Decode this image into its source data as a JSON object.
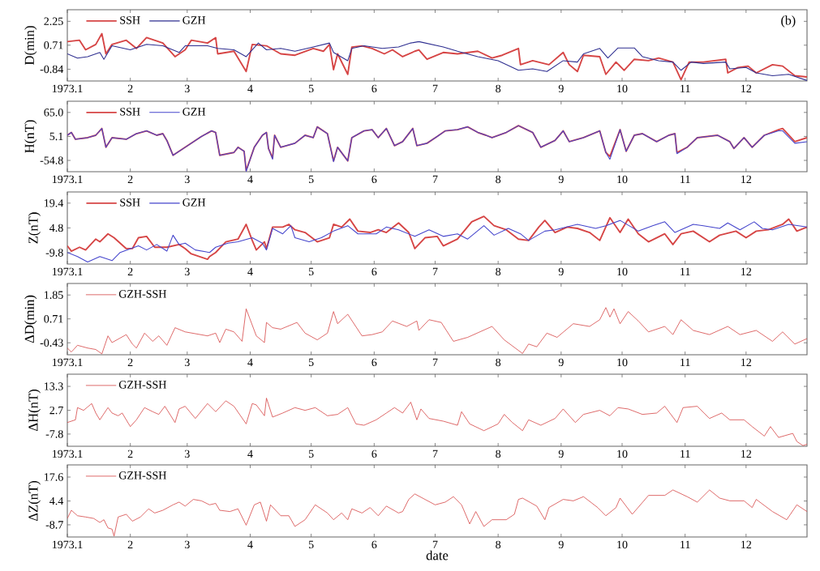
{
  "chart_data": [
    {
      "type": "line",
      "ylabel": "D(min)",
      "xlim": [
        "1973-01-01",
        "1973-12-31"
      ],
      "xticks": [
        {
          "value": "1973-01-01",
          "label": "1973.1"
        },
        {
          "value": "1973-02-01",
          "label": "2"
        },
        {
          "value": "1973-03-01",
          "label": "3"
        },
        {
          "value": "1973-04-01",
          "label": "4"
        },
        {
          "value": "1973-05-01",
          "label": "5"
        },
        {
          "value": "1973-06-01",
          "label": "6"
        },
        {
          "value": "1973-07-01",
          "label": "7"
        },
        {
          "value": "1973-08-01",
          "label": "8"
        },
        {
          "value": "1973-09-01",
          "label": "9"
        },
        {
          "value": "1973-10-01",
          "label": "10"
        },
        {
          "value": "1973-11-01",
          "label": "11"
        },
        {
          "value": "1973-12-01",
          "label": "12"
        }
      ],
      "ylim": [
        -1.6,
        3.0
      ],
      "yticks": [
        2.25,
        0.71,
        -0.84
      ],
      "legend": "top left",
      "annotations": [
        "(b)"
      ],
      "series": [
        {
          "name": "SSH",
          "color": "#d64545",
          "x": [
            "1973-01-01",
            "1973-01-07",
            "1973-01-10",
            "1973-01-15",
            "1973-01-18",
            "1973-01-20",
            "1973-01-23",
            "1973-01-30",
            "1973-02-04",
            "1973-02-09",
            "1973-02-17",
            "1973-02-23",
            "1973-02-28",
            "1973-03-03",
            "1973-03-11",
            "1973-03-15",
            "1973-03-16",
            "1973-03-24",
            "1973-03-30",
            "1973-04-02",
            "1973-04-09",
            "1973-04-16",
            "1973-04-23",
            "1973-05-02",
            "1973-05-07",
            "1973-05-10",
            "1973-05-12",
            "1973-05-14",
            "1973-05-19",
            "1973-05-21",
            "1973-05-26",
            "1973-05-31",
            "1973-06-06",
            "1973-06-10",
            "1973-06-15",
            "1973-06-21",
            "1973-06-23",
            "1973-06-27",
            "1973-07-05",
            "1973-07-12",
            "1973-07-22",
            "1973-07-29",
            "1973-08-03",
            "1973-08-11",
            "1973-08-12",
            "1973-08-18",
            "1973-08-26",
            "1973-09-02",
            "1973-09-05",
            "1973-09-09",
            "1973-09-12",
            "1973-09-20",
            "1973-09-23",
            "1973-09-28",
            "1973-10-02",
            "1973-10-07",
            "1973-10-14",
            "1973-10-19",
            "1973-10-26",
            "1973-10-30",
            "1973-11-03",
            "1973-11-10",
            "1973-11-21",
            "1973-11-22",
            "1973-11-27",
            "1973-12-02",
            "1973-12-06",
            "1973-12-14",
            "1973-12-19",
            "1973-12-25",
            "1973-12-31"
          ],
          "values": [
            0.94,
            1.03,
            0.41,
            0.76,
            1.46,
            0.15,
            0.76,
            1.03,
            0.5,
            1.2,
            0.85,
            -0.03,
            0.41,
            1.03,
            0.85,
            1.2,
            0.15,
            0.32,
            -0.99,
            0.76,
            0.67,
            0.15,
            0.06,
            0.5,
            0.32,
            0.76,
            -0.87,
            0.15,
            -1.17,
            0.59,
            0.67,
            0.5,
            0.15,
            0.41,
            -0.03,
            0.32,
            0.41,
            -0.2,
            0.24,
            0.15,
            0.32,
            -0.12,
            0.06,
            0.5,
            -0.55,
            -0.29,
            -0.55,
            0.24,
            -0.55,
            -0.99,
            0.06,
            -0.03,
            -1.17,
            -0.38,
            -0.91,
            -0.2,
            -0.29,
            -0.12,
            -0.38,
            -1.52,
            -0.38,
            -0.38,
            -0.2,
            -1.08,
            -0.73,
            -0.64,
            -1.08,
            -0.55,
            -0.64,
            -1.26,
            -1.34
          ]
        },
        {
          "name": "GZH",
          "color": "#2e2e90",
          "x": [
            "1973-01-01",
            "1973-01-06",
            "1973-01-11",
            "1973-01-17",
            "1973-01-19",
            "1973-01-23",
            "1973-02-01",
            "1973-02-09",
            "1973-02-17",
            "1973-02-25",
            "1973-02-28",
            "1973-03-11",
            "1973-03-16",
            "1973-03-24",
            "1973-03-30",
            "1973-04-05",
            "1973-04-09",
            "1973-04-16",
            "1973-04-23",
            "1973-05-02",
            "1973-05-10",
            "1973-05-12",
            "1973-05-19",
            "1973-05-21",
            "1973-05-27",
            "1973-06-05",
            "1973-06-13",
            "1973-06-19",
            "1973-06-23",
            "1973-07-05",
            "1973-07-12",
            "1973-07-22",
            "1973-08-01",
            "1973-08-11",
            "1973-08-18",
            "1973-08-25",
            "1973-09-02",
            "1973-09-09",
            "1973-09-12",
            "1973-09-20",
            "1973-09-24",
            "1973-09-29",
            "1973-10-07",
            "1973-10-11",
            "1973-10-19",
            "1973-10-26",
            "1973-10-30",
            "1973-11-04",
            "1973-11-10",
            "1973-11-21",
            "1973-11-23",
            "1973-12-01",
            "1973-12-06",
            "1973-12-14",
            "1973-12-22",
            "1973-12-31"
          ],
          "values": [
            0.15,
            -0.12,
            -0.03,
            0.24,
            -0.2,
            0.67,
            0.41,
            0.76,
            0.67,
            0.24,
            0.67,
            0.67,
            0.5,
            0.41,
            -0.03,
            0.85,
            0.41,
            0.5,
            0.32,
            0.59,
            0.85,
            0.24,
            -0.29,
            0.5,
            0.67,
            0.5,
            0.59,
            0.85,
            0.94,
            0.59,
            0.32,
            -0.03,
            -0.29,
            -0.91,
            -0.82,
            -0.99,
            -0.29,
            -0.38,
            0.15,
            0.5,
            -0.12,
            0.53,
            0.53,
            -0.03,
            -0.29,
            -0.38,
            -0.91,
            -0.38,
            -0.47,
            -0.38,
            -0.82,
            -0.73,
            -1.08,
            -1.26,
            -1.17,
            -1.57
          ]
        }
      ]
    },
    {
      "type": "line",
      "ylabel": "H(nT)",
      "xlim": [
        "1973-01-01",
        "1973-12-31"
      ],
      "xticks": [
        {
          "value": "1973-01-01",
          "label": "1973.1"
        },
        {
          "value": "1973-02-01",
          "label": "2"
        },
        {
          "value": "1973-03-01",
          "label": "3"
        },
        {
          "value": "1973-04-01",
          "label": "4"
        },
        {
          "value": "1973-05-01",
          "label": "5"
        },
        {
          "value": "1973-06-01",
          "label": "6"
        },
        {
          "value": "1973-07-01",
          "label": "7"
        },
        {
          "value": "1973-08-01",
          "label": "8"
        },
        {
          "value": "1973-09-01",
          "label": "9"
        },
        {
          "value": "1973-10-01",
          "label": "10"
        },
        {
          "value": "1973-11-01",
          "label": "11"
        },
        {
          "value": "1973-12-01",
          "label": "12"
        }
      ],
      "ylim": [
        -83,
        93
      ],
      "yticks": [
        {
          "value": 65,
          "label": "65.0"
        },
        5.1,
        -54.8
      ],
      "legend": "top left",
      "x": [
        "1973-01-01",
        "1973-01-03",
        "1973-01-05",
        "1973-01-11",
        "1973-01-15",
        "1973-01-18",
        "1973-01-20",
        "1973-01-23",
        "1973-01-30",
        "1973-02-04",
        "1973-02-09",
        "1973-02-14",
        "1973-02-17",
        "1973-02-19",
        "1973-02-22",
        "1973-02-28",
        "1973-03-08",
        "1973-03-13",
        "1973-03-15",
        "1973-03-17",
        "1973-03-24",
        "1973-03-26",
        "1973-03-29",
        "1973-03-30",
        "1973-04-03",
        "1973-04-07",
        "1973-04-09",
        "1973-04-10",
        "1973-04-12",
        "1973-04-13",
        "1973-04-16",
        "1973-04-23",
        "1973-04-28",
        "1973-05-02",
        "1973-05-04",
        "1973-05-09",
        "1973-05-12",
        "1973-05-14",
        "1973-05-19",
        "1973-05-21",
        "1973-05-27",
        "1973-05-31",
        "1973-06-03",
        "1973-06-07",
        "1973-06-11",
        "1973-06-15",
        "1973-06-20",
        "1973-06-22",
        "1973-06-27",
        "1973-07-02",
        "1973-07-06",
        "1973-07-12",
        "1973-07-17",
        "1973-07-22",
        "1973-07-26",
        "1973-07-29",
        "1973-08-05",
        "1973-08-11",
        "1973-08-18",
        "1973-08-22",
        "1973-08-29",
        "1973-09-02",
        "1973-09-05",
        "1973-09-12",
        "1973-09-20",
        "1973-09-23",
        "1973-09-25",
        "1973-09-30",
        "1973-10-03",
        "1973-10-07",
        "1973-10-11",
        "1973-10-18",
        "1973-10-24",
        "1973-10-27",
        "1973-10-28",
        "1973-11-02",
        "1973-11-07",
        "1973-11-17",
        "1973-11-23",
        "1973-11-25",
        "1973-11-30",
        "1973-12-04",
        "1973-12-10",
        "1973-12-17",
        "1973-12-19",
        "1973-12-25",
        "1973-12-31"
      ],
      "series": [
        {
          "name": "SSH",
          "color": "#d64545",
          "values": [
            8,
            15,
            -2,
            2,
            8,
            25,
            -22,
            2,
            -2,
            12,
            19,
            8,
            12,
            -5,
            -42,
            -22,
            5,
            19,
            15,
            -42,
            -35,
            -22,
            -32,
            -80,
            -22,
            8,
            15,
            -25,
            -49,
            8,
            -22,
            -12,
            8,
            2,
            29,
            12,
            -56,
            -22,
            -56,
            2,
            19,
            22,
            2,
            25,
            -18,
            -8,
            25,
            -18,
            -12,
            5,
            19,
            22,
            29,
            15,
            8,
            2,
            15,
            32,
            15,
            -22,
            -5,
            19,
            -8,
            2,
            19,
            -35,
            -45,
            22,
            -32,
            8,
            12,
            -8,
            8,
            12,
            -35,
            -22,
            2,
            8,
            -8,
            -25,
            2,
            -22,
            8,
            22,
            25,
            -8,
            2
          ]
        },
        {
          "name": "GZH",
          "color": "#4545cc",
          "values": [
            8,
            15,
            -2,
            2,
            8,
            25,
            -22,
            2,
            -2,
            12,
            19,
            8,
            12,
            -5,
            -42,
            -22,
            5,
            19,
            15,
            -42,
            -35,
            -22,
            -32,
            -82,
            -22,
            8,
            15,
            -25,
            -52,
            8,
            -22,
            -12,
            8,
            2,
            29,
            12,
            -58,
            -22,
            -56,
            2,
            19,
            22,
            2,
            25,
            -18,
            -8,
            25,
            -18,
            -12,
            5,
            19,
            22,
            29,
            15,
            8,
            2,
            15,
            32,
            15,
            -22,
            -5,
            19,
            -8,
            2,
            19,
            -35,
            -52,
            22,
            -32,
            8,
            12,
            -8,
            8,
            12,
            -38,
            -22,
            2,
            8,
            -8,
            -25,
            2,
            -22,
            8,
            19,
            19,
            -12,
            -8
          ]
        }
      ]
    },
    {
      "type": "line",
      "ylabel": "Z(nT)",
      "xlim": [
        "1973-01-01",
        "1973-12-31"
      ],
      "xticks": [
        {
          "value": "1973-01-01",
          "label": "1973.1"
        },
        {
          "value": "1973-02-01",
          "label": "2"
        },
        {
          "value": "1973-03-01",
          "label": "3"
        },
        {
          "value": "1973-04-01",
          "label": "4"
        },
        {
          "value": "1973-05-01",
          "label": "5"
        },
        {
          "value": "1973-06-01",
          "label": "6"
        },
        {
          "value": "1973-07-01",
          "label": "7"
        },
        {
          "value": "1973-08-01",
          "label": "8"
        },
        {
          "value": "1973-09-01",
          "label": "9"
        },
        {
          "value": "1973-10-01",
          "label": "10"
        },
        {
          "value": "1973-11-01",
          "label": "11"
        },
        {
          "value": "1973-12-01",
          "label": "12"
        }
      ],
      "ylim": [
        -16.5,
        26
      ],
      "yticks": [
        19.4,
        4.8,
        -9.8
      ],
      "legend": "top left",
      "series": [
        {
          "name": "SSH",
          "color": "#d64545",
          "x": [
            "1973-01-01",
            "1973-01-03",
            "1973-01-07",
            "1973-01-10",
            "1973-01-15",
            "1973-01-17",
            "1973-01-21",
            "1973-01-24",
            "1973-01-30",
            "1973-02-02",
            "1973-02-05",
            "1973-02-09",
            "1973-02-13",
            "1973-02-19",
            "1973-02-25",
            "1973-02-28",
            "1973-03-03",
            "1973-03-11",
            "1973-03-12",
            "1973-03-15",
            "1973-03-20",
            "1973-03-26",
            "1973-03-30",
            "1973-04-02",
            "1973-04-04",
            "1973-04-08",
            "1973-04-09",
            "1973-04-12",
            "1973-04-17",
            "1973-04-20",
            "1973-04-23",
            "1973-04-28",
            "1973-05-04",
            "1973-05-10",
            "1973-05-12",
            "1973-05-16",
            "1973-05-20",
            "1973-05-24",
            "1973-05-30",
            "1973-06-03",
            "1973-06-07",
            "1973-06-13",
            "1973-06-18",
            "1973-06-21",
            "1973-06-26",
            "1973-07-02",
            "1973-07-05",
            "1973-07-12",
            "1973-07-19",
            "1973-07-25",
            "1973-07-30",
            "1973-08-05",
            "1973-08-11",
            "1973-08-16",
            "1973-08-21",
            "1973-08-24",
            "1973-08-29",
            "1973-09-04",
            "1973-09-09",
            "1973-09-15",
            "1973-09-20",
            "1973-09-25",
            "1973-09-30",
            "1973-10-04",
            "1973-10-09",
            "1973-10-14",
            "1973-10-22",
            "1973-10-26",
            "1973-10-30",
            "1973-11-05",
            "1973-11-13",
            "1973-11-18",
            "1973-11-26",
            "1973-12-01",
            "1973-12-06",
            "1973-12-12",
            "1973-12-19",
            "1973-12-22",
            "1973-12-26",
            "1973-12-31"
          ],
          "values": [
            -5.8,
            -8.9,
            -6.6,
            -8.2,
            -1.8,
            -3.4,
            1.3,
            -1.0,
            -7.4,
            -7.4,
            -1.0,
            -0.2,
            -6.6,
            -6.6,
            -5.0,
            -7.4,
            -10.5,
            -13.7,
            -12.1,
            -9.7,
            -3.4,
            -1.8,
            6.9,
            -2.6,
            -8.2,
            -3.4,
            -7.4,
            5.3,
            5.3,
            6.9,
            3.7,
            2.1,
            -3.4,
            -1.0,
            6.9,
            5.3,
            10.0,
            2.9,
            2.1,
            3.7,
            2.1,
            7.7,
            2.1,
            -7.4,
            -1.0,
            -0.2,
            -5.8,
            -1.8,
            8.4,
            11.6,
            6.1,
            3.7,
            -1.8,
            -2.6,
            5.3,
            9.2,
            2.1,
            5.3,
            4.5,
            2.1,
            -2.6,
            10.8,
            2.1,
            10.0,
            1.3,
            -3.4,
            1.3,
            -5.0,
            1.3,
            2.9,
            -3.4,
            0.5,
            2.9,
            -1.0,
            2.9,
            3.7,
            6.9,
            10.0,
            2.9,
            5.3
          ]
        },
        {
          "name": "GZH",
          "color": "#4545cc",
          "x": [
            "1973-01-01",
            "1973-01-06",
            "1973-01-11",
            "1973-01-17",
            "1973-01-23",
            "1973-01-27",
            "1973-02-05",
            "1973-02-09",
            "1973-02-14",
            "1973-02-19",
            "1973-02-22",
            "1973-02-25",
            "1973-02-28",
            "1973-03-05",
            "1973-03-12",
            "1973-03-15",
            "1973-03-21",
            "1973-03-26",
            "1973-04-02",
            "1973-04-07",
            "1973-04-09",
            "1973-04-12",
            "1973-04-17",
            "1973-04-21",
            "1973-04-23",
            "1973-04-30",
            "1973-05-06",
            "1973-05-12",
            "1973-05-19",
            "1973-05-24",
            "1973-06-02",
            "1973-06-07",
            "1973-06-13",
            "1973-06-21",
            "1973-06-28",
            "1973-07-05",
            "1973-07-12",
            "1973-07-17",
            "1973-07-25",
            "1973-07-30",
            "1973-08-06",
            "1973-08-12",
            "1973-08-16",
            "1973-08-24",
            "1973-08-29",
            "1973-09-09",
            "1973-09-18",
            "1973-09-23",
            "1973-09-30",
            "1973-10-09",
            "1973-10-16",
            "1973-10-22",
            "1973-10-27",
            "1973-11-05",
            "1973-11-10",
            "1973-11-18",
            "1973-11-22",
            "1973-11-28",
            "1973-12-05",
            "1973-12-09",
            "1973-12-14",
            "1973-12-22",
            "1973-12-31"
          ],
          "values": [
            -9.7,
            -12.1,
            -15.3,
            -12.1,
            -14.5,
            -9.7,
            -5.8,
            -8.2,
            -5.0,
            -8.9,
            0.5,
            -5.0,
            -4.2,
            -8.2,
            -9.7,
            -6.6,
            -4.2,
            -3.4,
            -1.0,
            -4.2,
            -8.2,
            4.5,
            1.3,
            6.1,
            -1.0,
            -3.4,
            -1.0,
            2.9,
            6.1,
            1.3,
            1.3,
            5.3,
            3.7,
            -0.2,
            3.7,
            -0.2,
            1.3,
            -1.8,
            6.1,
            0.5,
            4.5,
            1.3,
            -2.6,
            2.9,
            3.7,
            6.9,
            4.5,
            6.1,
            9.2,
            2.9,
            6.1,
            8.4,
            2.1,
            6.9,
            6.1,
            4.5,
            7.7,
            3.7,
            8.4,
            4.5,
            3.7,
            6.9,
            5.3
          ]
        }
      ]
    },
    {
      "type": "line",
      "ylabel": "ΔD(min)",
      "xlim": [
        "1973-01-01",
        "1973-12-31"
      ],
      "xticks": [
        {
          "value": "1973-01-01",
          "label": "1973.1"
        },
        {
          "value": "1973-02-01",
          "label": "2"
        },
        {
          "value": "1973-03-01",
          "label": "3"
        },
        {
          "value": "1973-04-01",
          "label": "4"
        },
        {
          "value": "1973-05-01",
          "label": "5"
        },
        {
          "value": "1973-06-01",
          "label": "6"
        },
        {
          "value": "1973-07-01",
          "label": "7"
        },
        {
          "value": "1973-08-01",
          "label": "8"
        },
        {
          "value": "1973-09-01",
          "label": "9"
        },
        {
          "value": "1973-10-01",
          "label": "10"
        },
        {
          "value": "1973-11-01",
          "label": "11"
        },
        {
          "value": "1973-12-01",
          "label": "12"
        }
      ],
      "ylim": [
        -1.0,
        2.4
      ],
      "yticks": [
        1.85,
        0.71,
        -0.43
      ],
      "legend": "top left",
      "series": [
        {
          "name": "GZH-SSH",
          "color": "#d64545",
          "x": [
            "1973-01-01",
            "1973-01-03",
            "1973-01-06",
            "1973-01-11",
            "1973-01-15",
            "1973-01-18",
            "1973-01-21",
            "1973-01-23",
            "1973-01-30",
            "1973-02-02",
            "1973-02-04",
            "1973-02-08",
            "1973-02-12",
            "1973-02-15",
            "1973-02-19",
            "1973-02-23",
            "1973-02-28",
            "1973-03-11",
            "1973-03-15",
            "1973-03-17",
            "1973-03-20",
            "1973-03-24",
            "1973-03-28",
            "1973-03-30",
            "1973-04-04",
            "1973-04-08",
            "1973-04-09",
            "1973-04-12",
            "1973-04-16",
            "1973-04-24",
            "1973-04-28",
            "1973-05-04",
            "1973-05-09",
            "1973-05-12",
            "1973-05-14",
            "1973-05-19",
            "1973-05-26",
            "1973-05-31",
            "1973-06-05",
            "1973-06-10",
            "1973-06-17",
            "1973-06-22",
            "1973-06-23",
            "1973-06-28",
            "1973-07-04",
            "1973-07-10",
            "1973-07-17",
            "1973-07-29",
            "1973-08-04",
            "1973-08-13",
            "1973-08-16",
            "1973-08-20",
            "1973-08-25",
            "1973-08-30",
            "1973-09-07",
            "1973-09-15",
            "1973-09-20",
            "1973-09-23",
            "1973-09-25",
            "1973-09-27",
            "1973-09-30",
            "1973-10-04",
            "1973-10-09",
            "1973-10-14",
            "1973-10-22",
            "1973-10-26",
            "1973-10-30",
            "1973-11-05",
            "1973-11-13",
            "1973-11-22",
            "1973-11-28",
            "1973-12-06",
            "1973-12-14",
            "1973-12-19",
            "1973-12-25",
            "1973-12-31"
          ],
          "values": [
            -0.68,
            -0.87,
            -0.55,
            -0.68,
            -0.75,
            -0.96,
            -0.1,
            -0.42,
            -0.04,
            -0.49,
            -0.68,
            0.03,
            -0.36,
            -0.1,
            -0.55,
            0.29,
            0.09,
            -0.1,
            0.03,
            -0.42,
            0.22,
            0.09,
            -0.36,
            1.19,
            -0.1,
            -0.42,
            0.54,
            0.29,
            0.22,
            0.54,
            0.03,
            -0.29,
            0.03,
            1.06,
            0.48,
            0.93,
            -0.1,
            -0.04,
            0.09,
            0.61,
            0.35,
            0.61,
            0.16,
            0.67,
            0.54,
            -0.36,
            -0.17,
            0.35,
            -0.29,
            -0.94,
            -0.49,
            -0.62,
            0.03,
            -0.17,
            0.48,
            0.35,
            0.67,
            1.25,
            0.8,
            1.19,
            0.48,
            1.06,
            0.61,
            0.09,
            0.35,
            -0.04,
            0.67,
            0.16,
            -0.04,
            0.35,
            -0.04,
            0.16,
            -0.36,
            0.09,
            -0.49,
            -0.23
          ]
        }
      ]
    },
    {
      "type": "line",
      "ylabel": "ΔH(nT)",
      "xlim": [
        "1973-01-01",
        "1973-12-31"
      ],
      "xticks": [
        {
          "value": "1973-01-01",
          "label": "1973.1"
        },
        {
          "value": "1973-02-01",
          "label": "2"
        },
        {
          "value": "1973-03-01",
          "label": "3"
        },
        {
          "value": "1973-04-01",
          "label": "4"
        },
        {
          "value": "1973-05-01",
          "label": "5"
        },
        {
          "value": "1973-06-01",
          "label": "6"
        },
        {
          "value": "1973-07-01",
          "label": "7"
        },
        {
          "value": "1973-08-01",
          "label": "8"
        },
        {
          "value": "1973-09-01",
          "label": "9"
        },
        {
          "value": "1973-10-01",
          "label": "10"
        },
        {
          "value": "1973-11-01",
          "label": "11"
        },
        {
          "value": "1973-12-01",
          "label": "12"
        }
      ],
      "ylim": [
        -13.2,
        18.7
      ],
      "yticks": [
        13.3,
        2.7,
        -7.8
      ],
      "legend": "top left",
      "series": [
        {
          "name": "GZH-SSH",
          "color": "#d64545",
          "x": [
            "1973-01-01",
            "1973-01-05",
            "1973-01-06",
            "1973-01-09",
            "1973-01-13",
            "1973-01-15",
            "1973-01-17",
            "1973-01-21",
            "1973-01-23",
            "1973-01-26",
            "1973-01-28",
            "1973-02-01",
            "1973-02-04",
            "1973-02-08",
            "1973-02-12",
            "1973-02-15",
            "1973-02-18",
            "1973-02-23",
            "1973-02-25",
            "1973-02-28",
            "1973-03-05",
            "1973-03-11",
            "1973-03-15",
            "1973-03-20",
            "1973-03-24",
            "1973-03-30",
            "1973-04-02",
            "1973-04-04",
            "1973-04-08",
            "1973-04-09",
            "1973-04-12",
            "1973-04-17",
            "1973-04-23",
            "1973-04-28",
            "1973-05-03",
            "1973-05-09",
            "1973-05-14",
            "1973-05-19",
            "1973-05-23",
            "1973-05-27",
            "1973-06-02",
            "1973-06-07",
            "1973-06-11",
            "1973-06-15",
            "1973-06-19",
            "1973-06-22",
            "1973-06-24",
            "1973-06-28",
            "1973-07-05",
            "1973-07-12",
            "1973-07-14",
            "1973-07-18",
            "1973-07-25",
            "1973-08-01",
            "1973-08-04",
            "1973-08-08",
            "1973-08-13",
            "1973-08-16",
            "1973-08-22",
            "1973-08-29",
            "1973-09-02",
            "1973-09-08",
            "1973-09-12",
            "1973-09-20",
            "1973-09-25",
            "1973-09-29",
            "1973-10-04",
            "1973-10-11",
            "1973-10-18",
            "1973-10-22",
            "1973-10-28",
            "1973-10-31",
            "1973-11-07",
            "1973-11-13",
            "1973-11-19",
            "1973-11-23",
            "1973-11-30",
            "1973-12-04",
            "1973-12-10",
            "1973-12-13",
            "1973-12-17",
            "1973-12-24",
            "1973-12-26",
            "1973-12-29",
            "1973-12-31"
          ],
          "values": [
            -2.7,
            -1.5,
            3.9,
            2.7,
            5.7,
            1.5,
            -1.5,
            3.9,
            1.5,
            0.3,
            1.5,
            -4.5,
            -1.5,
            3.9,
            2.1,
            0.9,
            4.5,
            -2.7,
            3.3,
            4.5,
            -0.9,
            5.7,
            2.1,
            6.9,
            4.5,
            -3.3,
            5.7,
            5.1,
            0.3,
            8.1,
            -0.3,
            1.5,
            3.9,
            2.7,
            3.9,
            0.3,
            0.9,
            3.9,
            -3.3,
            -3.9,
            -1.5,
            1.5,
            3.9,
            1.5,
            6.3,
            -1.5,
            3.3,
            -0.9,
            -2.1,
            -3.9,
            2.1,
            -3.3,
            -6.3,
            -3.3,
            0.9,
            -2.7,
            -6.3,
            -1.5,
            -3.9,
            -0.9,
            3.3,
            -2.7,
            0.9,
            2.7,
            0.3,
            3.9,
            3.3,
            0.9,
            1.5,
            4.5,
            -2.7,
            3.9,
            4.5,
            -0.9,
            1.5,
            -1.5,
            -1.5,
            -4.5,
            -8.7,
            -4.5,
            -9.3,
            -7.5,
            -11.1,
            -12.9,
            -12.3
          ]
        }
      ]
    },
    {
      "type": "line",
      "ylabel": "ΔZ(nT)",
      "xlabel": "date",
      "xlim": [
        "1973-01-01",
        "1973-12-31"
      ],
      "xticks": [
        {
          "value": "1973-01-01",
          "label": "1973.1"
        },
        {
          "value": "1973-02-01",
          "label": "2"
        },
        {
          "value": "1973-03-01",
          "label": "3"
        },
        {
          "value": "1973-04-01",
          "label": "4"
        },
        {
          "value": "1973-05-01",
          "label": "5"
        },
        {
          "value": "1973-06-01",
          "label": "6"
        },
        {
          "value": "1973-07-01",
          "label": "7"
        },
        {
          "value": "1973-08-01",
          "label": "8"
        },
        {
          "value": "1973-09-01",
          "label": "9"
        },
        {
          "value": "1973-10-01",
          "label": "10"
        },
        {
          "value": "1973-11-01",
          "label": "11"
        },
        {
          "value": "1973-12-01",
          "label": "12"
        }
      ],
      "ylim": [
        -15.4,
        24.3
      ],
      "yticks": [
        17.6,
        4.4,
        -8.7
      ],
      "legend": "top left",
      "series": [
        {
          "name": "GZH-SSH",
          "color": "#d64545",
          "x": [
            "1973-01-01",
            "1973-01-03",
            "1973-01-06",
            "1973-01-10",
            "1973-01-14",
            "1973-01-17",
            "1973-01-19",
            "1973-01-21",
            "1973-01-23",
            "1973-01-24",
            "1973-01-26",
            "1973-01-30",
            "1973-02-02",
            "1973-02-06",
            "1973-02-10",
            "1973-02-13",
            "1973-02-17",
            "1973-02-22",
            "1973-02-25",
            "1973-02-28",
            "1973-03-04",
            "1973-03-08",
            "1973-03-12",
            "1973-03-15",
            "1973-03-17",
            "1973-03-22",
            "1973-03-26",
            "1973-03-30",
            "1973-04-03",
            "1973-04-06",
            "1973-04-09",
            "1973-04-11",
            "1973-04-16",
            "1973-04-20",
            "1973-04-23",
            "1973-04-28",
            "1973-05-03",
            "1973-05-09",
            "1973-05-12",
            "1973-05-16",
            "1973-05-19",
            "1973-05-21",
            "1973-05-26",
            "1973-05-30",
            "1973-06-03",
            "1973-06-07",
            "1973-06-13",
            "1973-06-15",
            "1973-06-18",
            "1973-06-21",
            "1973-06-26",
            "1973-07-01",
            "1973-07-06",
            "1973-07-10",
            "1973-07-14",
            "1973-07-18",
            "1973-07-21",
            "1973-07-25",
            "1973-07-29",
            "1973-08-05",
            "1973-08-09",
            "1973-08-11",
            "1973-08-13",
            "1973-08-20",
            "1973-08-24",
            "1973-08-26",
            "1973-09-02",
            "1973-09-07",
            "1973-09-12",
            "1973-09-19",
            "1973-09-23",
            "1973-09-28",
            "1973-09-30",
            "1973-10-06",
            "1973-10-10",
            "1973-10-14",
            "1973-10-22",
            "1973-10-26",
            "1973-11-02",
            "1973-11-07",
            "1973-11-13",
            "1973-11-18",
            "1973-11-23",
            "1973-11-30",
            "1973-12-04",
            "1973-12-06",
            "1973-12-14",
            "1973-12-21",
            "1973-12-26",
            "1973-12-31"
          ],
          "values": [
            -5.2,
            -0.7,
            -3.7,
            -4.4,
            -5.2,
            -7.4,
            -5.9,
            -10.4,
            -11.1,
            -14.9,
            -4.4,
            -2.9,
            -6.7,
            -4.4,
            0.1,
            -2.2,
            -0.7,
            2.3,
            3.8,
            1.6,
            5.3,
            4.5,
            2.3,
            3.1,
            -0.7,
            -1.4,
            0.1,
            -8.9,
            2.3,
            3.8,
            -6.7,
            2.3,
            -3.7,
            -3.7,
            -9.6,
            -5.9,
            2.3,
            -2.2,
            -5.9,
            -2.2,
            -5.9,
            0.1,
            -2.2,
            0.8,
            -3.7,
            1.6,
            -2.2,
            -1.4,
            5.3,
            8.3,
            5.3,
            2.3,
            3.8,
            6.8,
            2.3,
            -8.2,
            -1.4,
            -9.6,
            -5.9,
            -5.9,
            -2.9,
            5.3,
            6.0,
            1.6,
            -5.9,
            0.8,
            5.3,
            4.5,
            6.8,
            0.8,
            -3.7,
            0.8,
            6.0,
            -2.9,
            2.3,
            7.5,
            7.5,
            10.5,
            6.8,
            3.8,
            10.5,
            6.0,
            4.5,
            4.5,
            0.8,
            5.3,
            -1.4,
            -5.9,
            2.3,
            -1.4
          ]
        }
      ]
    }
  ]
}
